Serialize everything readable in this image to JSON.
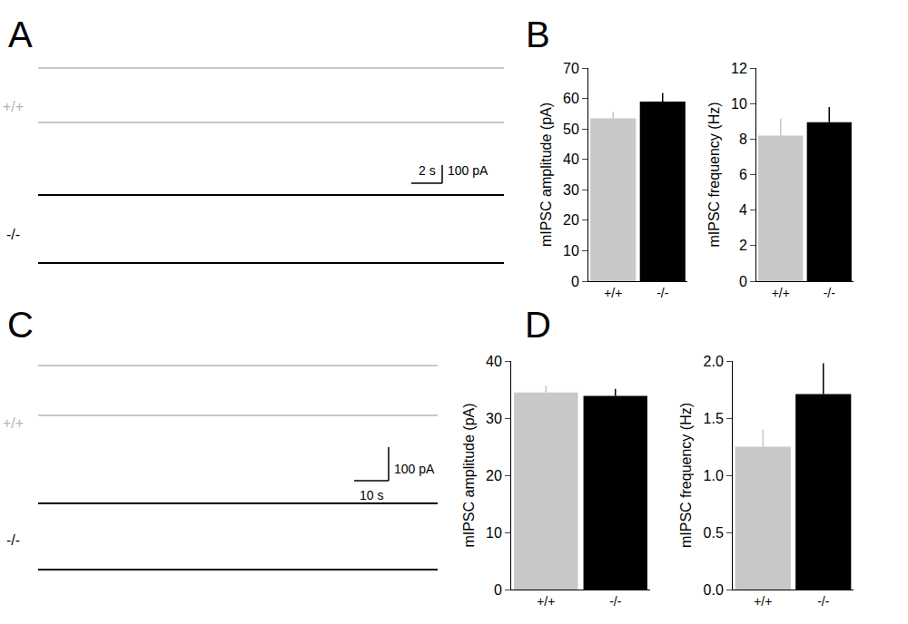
{
  "figure": {
    "panel_labels": [
      "A",
      "B",
      "C",
      "D"
    ],
    "trace_panels": [
      {
        "genotypes": [
          "+/+",
          "-/-"
        ],
        "colors": [
          "#c8c8c8",
          "#000000"
        ],
        "scale_time": "2 s",
        "scale_current": "100 pA"
      },
      {
        "genotypes": [
          "+/+",
          "-/-"
        ],
        "colors": [
          "#c8c8c8",
          "#000000"
        ],
        "scale_time": "10 s",
        "scale_current": "100 pA"
      }
    ]
  },
  "chart_data": [
    {
      "type": "bar",
      "y_label": "mIPSC amplitude (pA)",
      "categories": [
        "+/+",
        "-/-"
      ],
      "values": [
        53.5,
        59.0
      ],
      "errors": [
        2.2,
        2.8
      ],
      "colors": [
        "#c8c8c8",
        "#000000"
      ],
      "ylim": [
        0,
        70
      ],
      "yticks": [
        0,
        10,
        20,
        30,
        40,
        50,
        60,
        70
      ],
      "grid": false
    },
    {
      "type": "bar",
      "y_label": "mIPSC frequency (Hz)",
      "categories": [
        "+/+",
        "-/-"
      ],
      "values": [
        8.2,
        8.95
      ],
      "errors": [
        0.95,
        0.85
      ],
      "colors": [
        "#c8c8c8",
        "#000000"
      ],
      "ylim": [
        0,
        12
      ],
      "yticks": [
        0,
        2,
        4,
        6,
        8,
        10,
        12
      ],
      "grid": false
    },
    {
      "type": "bar",
      "y_label": "mIPSC amplitude (pA)",
      "categories": [
        "+/+",
        "-/-"
      ],
      "values": [
        34.5,
        33.9
      ],
      "errors": [
        1.2,
        1.2
      ],
      "colors": [
        "#c8c8c8",
        "#000000"
      ],
      "ylim": [
        0,
        40
      ],
      "yticks": [
        0,
        10,
        20,
        30,
        40
      ],
      "grid": false
    },
    {
      "type": "bar",
      "y_label": "mIPSC frequency (Hz)",
      "categories": [
        "+/+",
        "-/-"
      ],
      "values": [
        1.25,
        1.71
      ],
      "errors": [
        0.15,
        0.27
      ],
      "colors": [
        "#c8c8c8",
        "#000000"
      ],
      "ylim": [
        0,
        2.0
      ],
      "yticks": [
        {
          "value": 0,
          "label": "0.0"
        },
        0.5,
        {
          "value": 1,
          "label": "1.0"
        },
        1.5,
        {
          "value": 2,
          "label": "2.0"
        }
      ],
      "grid": false
    }
  ]
}
